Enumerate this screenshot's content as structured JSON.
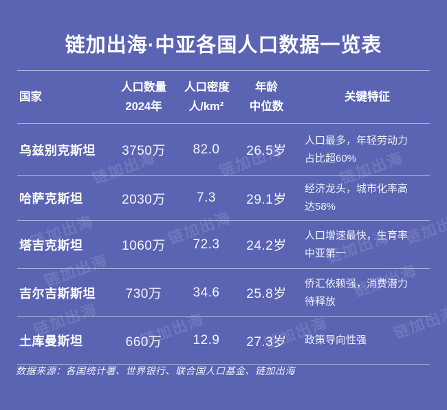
{
  "title": "链加出海·中亚各国人口数据一览表",
  "watermark": {
    "text": "链加出海"
  },
  "table": {
    "headers": [
      {
        "l1": "国家",
        "l2": ""
      },
      {
        "l1": "人口数量",
        "l2": "2024年"
      },
      {
        "l1": "人口密度",
        "l2": "人/km²"
      },
      {
        "l1": "年龄",
        "l2": "中位数"
      },
      {
        "l1": "关键特征",
        "l2": ""
      }
    ],
    "rows": [
      {
        "country": "乌兹别克斯坦",
        "population": "3750万",
        "density": "82.0",
        "median_age": "26.5岁",
        "feature": "人口最多，年轻劳动力占比超60%"
      },
      {
        "country": "哈萨克斯坦",
        "population": "2030万",
        "density": "7.3",
        "median_age": "29.1岁",
        "feature": "经济龙头，城市化率高达58%"
      },
      {
        "country": "塔吉克斯坦",
        "population": "1060万",
        "density": "72.3",
        "median_age": "24.2岁",
        "feature": "人口增速最快，生育率中亚第一"
      },
      {
        "country": "吉尔吉斯斯坦",
        "population": "730万",
        "density": "34.6",
        "median_age": "25.8岁",
        "feature": "侨汇依赖强，消费潜力待释放"
      },
      {
        "country": "土库曼斯坦",
        "population": "660万",
        "density": "12.9",
        "median_age": "27.3岁",
        "feature": "政策导向性强"
      }
    ]
  },
  "footer": {
    "source": "数据来源：各国统计署、世界银行、联合国人口基金、链加出海"
  },
  "colors": {
    "background": "#5a64b3",
    "text": "#ffffff",
    "divider": "rgba(224,227,240,0.62)",
    "watermark": "rgba(255,255,255,0.12)"
  },
  "chart_data": {
    "type": "table",
    "title": "链加出海·中亚各国人口数据一览表",
    "columns": [
      "国家",
      "人口数量 2024年",
      "人口密度 人/km²",
      "年龄 中位数",
      "关键特征"
    ],
    "rows": [
      [
        "乌兹别克斯坦",
        "3750万",
        "82.0",
        "26.5岁",
        "人口最多，年轻劳动力占比超60%"
      ],
      [
        "哈萨克斯坦",
        "2030万",
        "7.3",
        "29.1岁",
        "经济龙头，城市化率高达58%"
      ],
      [
        "塔吉克斯坦",
        "1060万",
        "72.3",
        "24.2岁",
        "人口增速最快，生育率中亚第一"
      ],
      [
        "吉尔吉斯斯坦",
        "730万",
        "34.6",
        "25.8岁",
        "侨汇依赖强，消费潜力待释放"
      ],
      [
        "土库曼斯坦",
        "660万",
        "12.9",
        "27.3岁",
        "政策导向性强"
      ]
    ],
    "population_2024_wan": [
      3750,
      2030,
      1060,
      730,
      660
    ],
    "density_per_km2": [
      82.0,
      7.3,
      72.3,
      34.6,
      12.9
    ],
    "median_age_years": [
      26.5,
      29.1,
      24.2,
      25.8,
      27.3
    ],
    "source": "数据来源：各国统计署、世界银行、联合国人口基金、链加出海",
    "legend_position": "none",
    "grid": "horizontal-dividers"
  }
}
